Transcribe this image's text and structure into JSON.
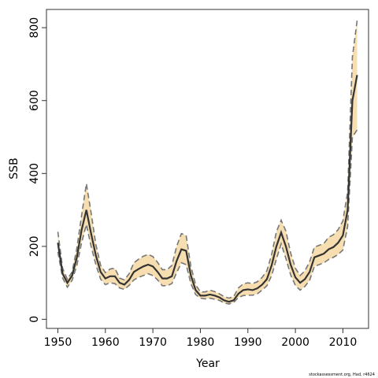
{
  "chart_data": {
    "type": "line",
    "xlabel": "Year",
    "ylabel": "SSB",
    "xlim": [
      1947.6,
      2015.4
    ],
    "ylim": [
      -25,
      850
    ],
    "x_ticks": [
      1950,
      1960,
      1970,
      1980,
      1990,
      2000,
      2010
    ],
    "y_ticks": [
      0,
      200,
      400,
      600,
      800
    ],
    "grid": false,
    "legend": "none",
    "colors": {
      "band": "#f6deb0",
      "bounds": "#777777",
      "line": "#333333",
      "frame": "#333333"
    },
    "x": [
      1950,
      1951,
      1952,
      1953,
      1954,
      1955,
      1956,
      1957,
      1958,
      1959,
      1960,
      1961,
      1962,
      1963,
      1964,
      1965,
      1966,
      1967,
      1968,
      1969,
      1970,
      1971,
      1972,
      1973,
      1974,
      1975,
      1976,
      1977,
      1978,
      1979,
      1980,
      1981,
      1982,
      1983,
      1984,
      1985,
      1986,
      1987,
      1988,
      1989,
      1990,
      1991,
      1992,
      1993,
      1994,
      1995,
      1996,
      1997,
      1998,
      1999,
      2000,
      2001,
      2002,
      2003,
      2004,
      2005,
      2006,
      2007,
      2008,
      2009,
      2010,
      2011,
      2012,
      2013
    ],
    "series": [
      {
        "values": [
          210,
          125,
          100,
          120,
          170,
          245,
          300,
          235,
          175,
          130,
          112,
          118,
          118,
          100,
          95,
          108,
          130,
          138,
          145,
          150,
          145,
          130,
          112,
          112,
          118,
          160,
          192,
          188,
          120,
          80,
          65,
          65,
          68,
          65,
          60,
          52,
          48,
          52,
          70,
          80,
          82,
          80,
          85,
          95,
          110,
          148,
          200,
          238,
          200,
          150,
          115,
          100,
          110,
          130,
          170,
          175,
          180,
          192,
          198,
          210,
          230,
          300,
          600,
          670
        ]
      },
      {
        "values": [
          240,
          140,
          110,
          130,
          195,
          285,
          372,
          292,
          205,
          148,
          128,
          138,
          140,
          113,
          108,
          125,
          155,
          165,
          173,
          178,
          172,
          156,
          136,
          136,
          148,
          200,
          235,
          230,
          145,
          95,
          75,
          75,
          80,
          76,
          70,
          62,
          58,
          62,
          86,
          97,
          100,
          98,
          103,
          115,
          133,
          178,
          240,
          272,
          242,
          182,
          140,
          120,
          133,
          158,
          198,
          203,
          208,
          225,
          232,
          246,
          270,
          350,
          720,
          820
        ]
      },
      {
        "values": [
          185,
          113,
          88,
          107,
          148,
          210,
          260,
          200,
          150,
          110,
          95,
          100,
          98,
          86,
          82,
          93,
          108,
          115,
          120,
          125,
          120,
          108,
          92,
          92,
          98,
          128,
          155,
          150,
          98,
          68,
          58,
          56,
          58,
          55,
          52,
          45,
          42,
          46,
          60,
          65,
          66,
          66,
          70,
          80,
          92,
          120,
          165,
          207,
          167,
          122,
          93,
          80,
          90,
          107,
          145,
          150,
          155,
          164,
          170,
          178,
          190,
          255,
          500,
          520
        ]
      }
    ],
    "credit": "stockassessment.org, Had, r4624"
  }
}
